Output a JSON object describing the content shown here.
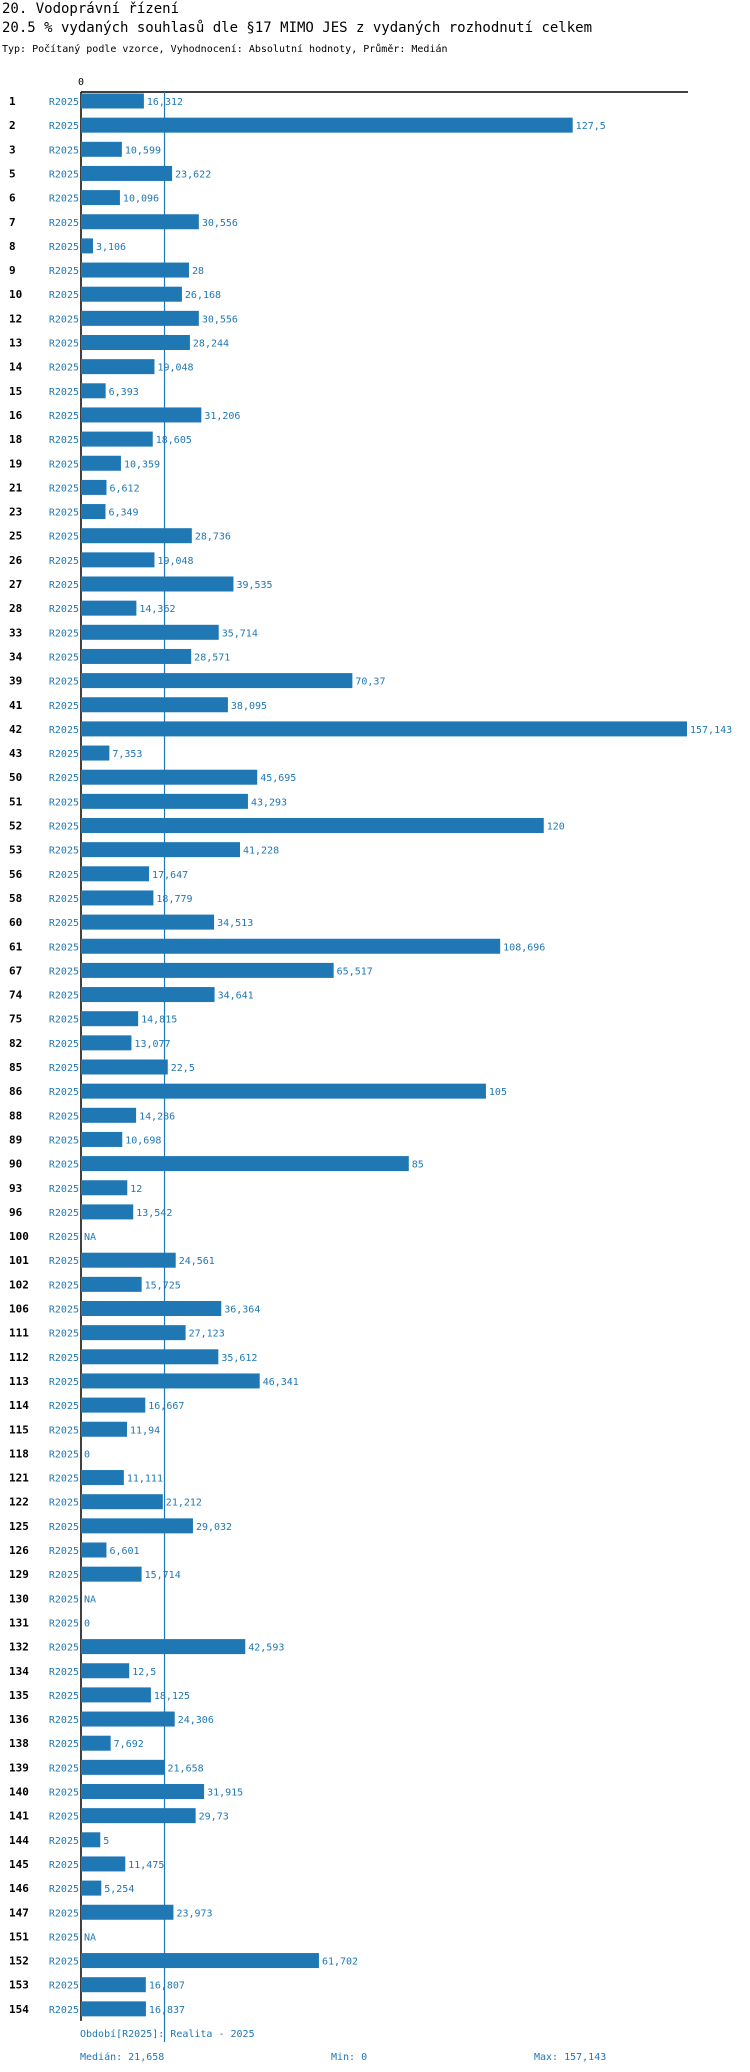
{
  "header": {
    "title": "20. Vodoprávní řízení",
    "subtitle": "20.5 % vydaných souhlasů dle §17 MIMO JES z vydaných rozhodnutí celkem",
    "type_line": "Typ: Počítaný podle vzorce, Vyhodnocení: Absolutní hodnoty, Průměr: Medián"
  },
  "colors": {
    "bar": "#1f77b4",
    "median_line": "#1f77b4",
    "axis": "#000000"
  },
  "chart_data": {
    "type": "bar",
    "orientation": "horizontal",
    "title": "20.5 % vydaných souhlasů dle §17 MIMO JES z vydaných rozhodnutí celkem",
    "series_label": "R2025",
    "axis_tick_label": "0",
    "xlim": [
      0,
      157.143
    ],
    "median": 21.658,
    "rows": [
      {
        "id": "1",
        "value": 16.312,
        "label": "16,312"
      },
      {
        "id": "2",
        "value": 127.5,
        "label": "127,5"
      },
      {
        "id": "3",
        "value": 10.599,
        "label": "10,599"
      },
      {
        "id": "5",
        "value": 23.622,
        "label": "23,622"
      },
      {
        "id": "6",
        "value": 10.096,
        "label": "10,096"
      },
      {
        "id": "7",
        "value": 30.556,
        "label": "30,556"
      },
      {
        "id": "8",
        "value": 3.106,
        "label": "3,106"
      },
      {
        "id": "9",
        "value": 28,
        "label": "28"
      },
      {
        "id": "10",
        "value": 26.168,
        "label": "26,168"
      },
      {
        "id": "12",
        "value": 30.556,
        "label": "30,556"
      },
      {
        "id": "13",
        "value": 28.244,
        "label": "28,244"
      },
      {
        "id": "14",
        "value": 19.048,
        "label": "19,048"
      },
      {
        "id": "15",
        "value": 6.393,
        "label": "6,393"
      },
      {
        "id": "16",
        "value": 31.206,
        "label": "31,206"
      },
      {
        "id": "18",
        "value": 18.605,
        "label": "18,605"
      },
      {
        "id": "19",
        "value": 10.359,
        "label": "10,359"
      },
      {
        "id": "21",
        "value": 6.612,
        "label": "6,612"
      },
      {
        "id": "23",
        "value": 6.349,
        "label": "6,349"
      },
      {
        "id": "25",
        "value": 28.736,
        "label": "28,736"
      },
      {
        "id": "26",
        "value": 19.048,
        "label": "19,048"
      },
      {
        "id": "27",
        "value": 39.535,
        "label": "39,535"
      },
      {
        "id": "28",
        "value": 14.362,
        "label": "14,362"
      },
      {
        "id": "33",
        "value": 35.714,
        "label": "35,714"
      },
      {
        "id": "34",
        "value": 28.571,
        "label": "28,571"
      },
      {
        "id": "39",
        "value": 70.37,
        "label": "70,37"
      },
      {
        "id": "41",
        "value": 38.095,
        "label": "38,095"
      },
      {
        "id": "42",
        "value": 157.143,
        "label": "157,143"
      },
      {
        "id": "43",
        "value": 7.353,
        "label": "7,353"
      },
      {
        "id": "50",
        "value": 45.695,
        "label": "45,695"
      },
      {
        "id": "51",
        "value": 43.293,
        "label": "43,293"
      },
      {
        "id": "52",
        "value": 120,
        "label": "120"
      },
      {
        "id": "53",
        "value": 41.228,
        "label": "41,228"
      },
      {
        "id": "56",
        "value": 17.647,
        "label": "17,647"
      },
      {
        "id": "58",
        "value": 18.779,
        "label": "18,779"
      },
      {
        "id": "60",
        "value": 34.513,
        "label": "34,513"
      },
      {
        "id": "61",
        "value": 108.696,
        "label": "108,696"
      },
      {
        "id": "67",
        "value": 65.517,
        "label": "65,517"
      },
      {
        "id": "74",
        "value": 34.641,
        "label": "34,641"
      },
      {
        "id": "75",
        "value": 14.815,
        "label": "14,815"
      },
      {
        "id": "82",
        "value": 13.077,
        "label": "13,077"
      },
      {
        "id": "85",
        "value": 22.5,
        "label": "22,5"
      },
      {
        "id": "86",
        "value": 105,
        "label": "105"
      },
      {
        "id": "88",
        "value": 14.286,
        "label": "14,286"
      },
      {
        "id": "89",
        "value": 10.698,
        "label": "10,698"
      },
      {
        "id": "90",
        "value": 85,
        "label": "85"
      },
      {
        "id": "93",
        "value": 12,
        "label": "12"
      },
      {
        "id": "96",
        "value": 13.542,
        "label": "13,542"
      },
      {
        "id": "100",
        "value": null,
        "label": "NA"
      },
      {
        "id": "101",
        "value": 24.561,
        "label": "24,561"
      },
      {
        "id": "102",
        "value": 15.725,
        "label": "15,725"
      },
      {
        "id": "106",
        "value": 36.364,
        "label": "36,364"
      },
      {
        "id": "111",
        "value": 27.123,
        "label": "27,123"
      },
      {
        "id": "112",
        "value": 35.612,
        "label": "35,612"
      },
      {
        "id": "113",
        "value": 46.341,
        "label": "46,341"
      },
      {
        "id": "114",
        "value": 16.667,
        "label": "16,667"
      },
      {
        "id": "115",
        "value": 11.94,
        "label": "11,94"
      },
      {
        "id": "118",
        "value": 0,
        "label": "0"
      },
      {
        "id": "121",
        "value": 11.111,
        "label": "11,111"
      },
      {
        "id": "122",
        "value": 21.212,
        "label": "21,212"
      },
      {
        "id": "125",
        "value": 29.032,
        "label": "29,032"
      },
      {
        "id": "126",
        "value": 6.601,
        "label": "6,601"
      },
      {
        "id": "129",
        "value": 15.714,
        "label": "15,714"
      },
      {
        "id": "130",
        "value": null,
        "label": "NA"
      },
      {
        "id": "131",
        "value": 0,
        "label": "0"
      },
      {
        "id": "132",
        "value": 42.593,
        "label": "42,593"
      },
      {
        "id": "134",
        "value": 12.5,
        "label": "12,5"
      },
      {
        "id": "135",
        "value": 18.125,
        "label": "18,125"
      },
      {
        "id": "136",
        "value": 24.306,
        "label": "24,306"
      },
      {
        "id": "138",
        "value": 7.692,
        "label": "7,692"
      },
      {
        "id": "139",
        "value": 21.658,
        "label": "21,658"
      },
      {
        "id": "140",
        "value": 31.915,
        "label": "31,915"
      },
      {
        "id": "141",
        "value": 29.73,
        "label": "29,73"
      },
      {
        "id": "144",
        "value": 5,
        "label": "5"
      },
      {
        "id": "145",
        "value": 11.475,
        "label": "11,475"
      },
      {
        "id": "146",
        "value": 5.254,
        "label": "5,254"
      },
      {
        "id": "147",
        "value": 23.973,
        "label": "23,973"
      },
      {
        "id": "151",
        "value": null,
        "label": "NA"
      },
      {
        "id": "152",
        "value": 61.702,
        "label": "61,702"
      },
      {
        "id": "153",
        "value": 16.807,
        "label": "16,807"
      },
      {
        "id": "154",
        "value": 16.837,
        "label": "16,837"
      }
    ]
  },
  "footer": {
    "period": "Období[R2025]: Realita - 2025",
    "median": "Medián: 21,658",
    "min": "Min: 0",
    "max": "Max: 157,143"
  }
}
